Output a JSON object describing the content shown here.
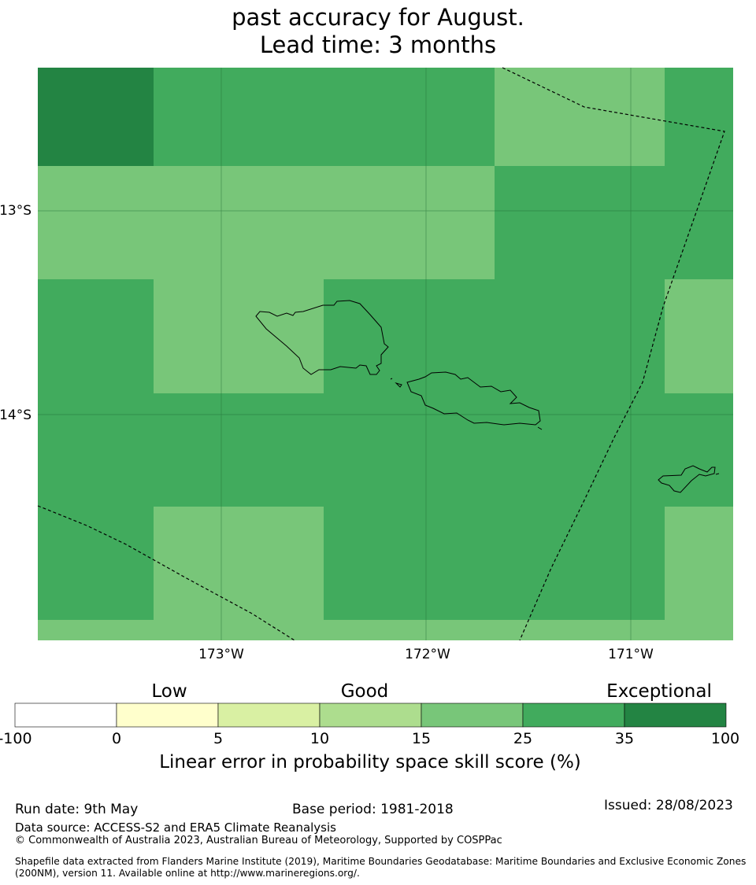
{
  "title": {
    "line1": "past accuracy for August.",
    "line2": "Lead time: 3 months"
  },
  "map": {
    "lon_labels": [
      "173°W",
      "172°W",
      "171°W"
    ],
    "lat_labels": [
      "13°S",
      "14°S"
    ],
    "colors": {
      "c15_25": "#78c679",
      "c25_35": "#41ab5d",
      "c35_100": "#238443"
    },
    "grid_cells": [
      {
        "band": "35-100"
      },
      {
        "band": "25-35"
      },
      {
        "band": "15-25"
      }
    ]
  },
  "colorbar": {
    "category_labels": [
      "Low",
      "Good",
      "Exceptional"
    ],
    "ticks": [
      "-100",
      "0",
      "5",
      "10",
      "15",
      "25",
      "35",
      "100"
    ],
    "colors": [
      "#ffffff",
      "#ffffcc",
      "#d9f0a3",
      "#addd8e",
      "#78c679",
      "#41ab5d",
      "#238443"
    ],
    "title": "Linear error in probability space skill score (%)"
  },
  "footer": {
    "run_date": "Run date: 9th May",
    "base_period": "Base period: 1981-2018",
    "issued": "Issued: 28/08/2023",
    "data_source": "Data source: ACCESS-S2 and ERA5 Climate Reanalysis",
    "copyright": "© Commonwealth of Australia 2023, Australian Bureau of Meteorology, Supported by COSPPac",
    "shapefile_line1": "Shapefile data extracted from Flanders Marine Institute (2019), Maritime Boundaries Geodatabase: Maritime Boundaries and Exclusive Economic Zones",
    "shapefile_line2": "(200NM), version 11. Available online at http://www.marineregions.org/."
  }
}
